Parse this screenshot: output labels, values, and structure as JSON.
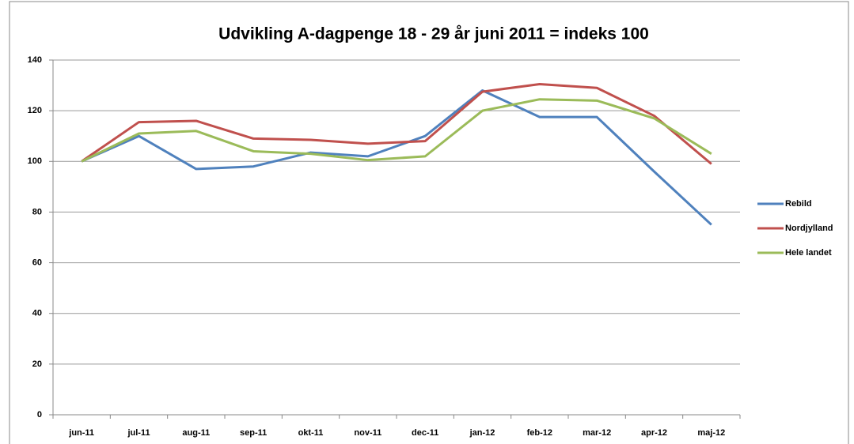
{
  "chart_data": {
    "type": "line",
    "title": "Udvikling A-dagpenge 18 - 29 år juni 2011 = indeks 100",
    "categories": [
      "jun-11",
      "jul-11",
      "aug-11",
      "sep-11",
      "okt-11",
      "nov-11",
      "dec-11",
      "jan-12",
      "feb-12",
      "mar-12",
      "apr-12",
      "maj-12"
    ],
    "series": [
      {
        "name": "Rebild",
        "color": "#4f81bd",
        "values": [
          100,
          110,
          97,
          98,
          103.5,
          102,
          110,
          128,
          117.5,
          117.5,
          96,
          75
        ]
      },
      {
        "name": "Nordjylland",
        "color": "#c0504d",
        "values": [
          100,
          115.5,
          116,
          109,
          108.5,
          107,
          108,
          127.5,
          130.5,
          129,
          118,
          99
        ]
      },
      {
        "name": "Hele landet",
        "color": "#9bbb59",
        "values": [
          100,
          111,
          112,
          104,
          103,
          100.5,
          102,
          120,
          124.5,
          124,
          117,
          103
        ]
      }
    ],
    "ylim": [
      0,
      140
    ],
    "yticks": [
      0,
      20,
      40,
      60,
      80,
      100,
      120,
      140
    ],
    "grid": true,
    "legend": "right"
  }
}
